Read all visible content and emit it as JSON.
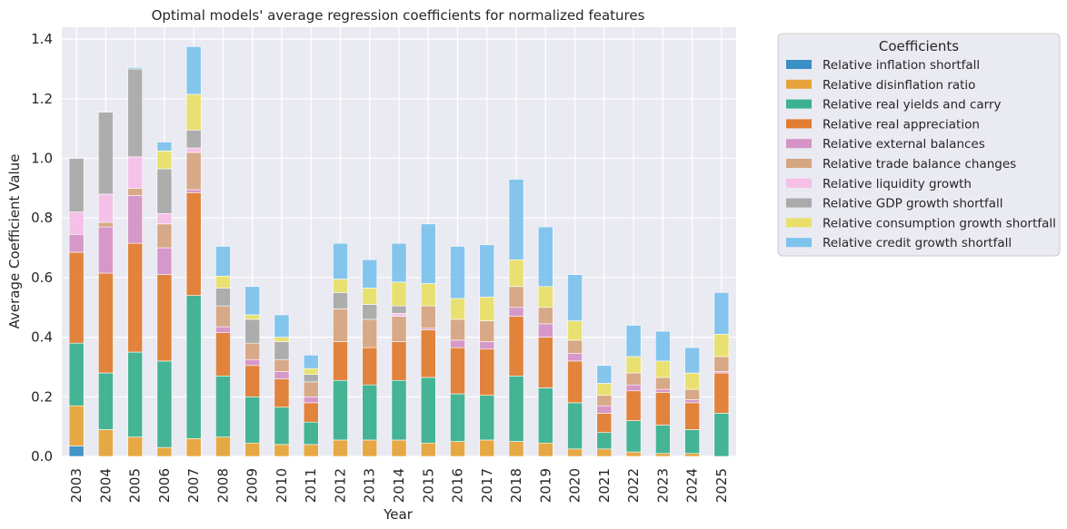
{
  "chart_data": {
    "type": "bar",
    "stacked": true,
    "title": "Optimal models' average regression coefficients for normalized features",
    "xlabel": "Year",
    "ylabel": "Average Coefficient Value",
    "ylim": [
      0,
      1.44
    ],
    "yticks": [
      "0.0",
      "0.2",
      "0.4",
      "0.6",
      "0.8",
      "1.0",
      "1.2",
      "1.4"
    ],
    "ytick_values": [
      0,
      0.2,
      0.4,
      0.6,
      0.8,
      1.0,
      1.2,
      1.4
    ],
    "grid": true,
    "legend_title": "Coefficients",
    "legend_placement": "outside-right",
    "categories": [
      "2003",
      "2004",
      "2005",
      "2006",
      "2007",
      "2008",
      "2009",
      "2010",
      "2011",
      "2012",
      "2013",
      "2014",
      "2015",
      "2016",
      "2017",
      "2018",
      "2019",
      "2020",
      "2021",
      "2022",
      "2023",
      "2024",
      "2025"
    ],
    "series": [
      {
        "name": "Relative inflation shortfall",
        "color": "#3a8fc6",
        "values": [
          0.035,
          0,
          0,
          0,
          0,
          0,
          0,
          0,
          0,
          0,
          0,
          0,
          0,
          0,
          0,
          0,
          0,
          0,
          0,
          0,
          0,
          0,
          0
        ]
      },
      {
        "name": "Relative disinflation ratio",
        "color": "#e6a43a",
        "values": [
          0.135,
          0.09,
          0.065,
          0.03,
          0.06,
          0.065,
          0.045,
          0.04,
          0.04,
          0.055,
          0.055,
          0.055,
          0.045,
          0.05,
          0.055,
          0.05,
          0.045,
          0.025,
          0.025,
          0.015,
          0.01,
          0.01,
          0.0
        ]
      },
      {
        "name": "Relative real yields and carry",
        "color": "#3bb18e",
        "values": [
          0.21,
          0.19,
          0.285,
          0.29,
          0.48,
          0.205,
          0.155,
          0.125,
          0.075,
          0.2,
          0.185,
          0.2,
          0.22,
          0.16,
          0.15,
          0.22,
          0.185,
          0.155,
          0.055,
          0.105,
          0.095,
          0.08,
          0.145
        ]
      },
      {
        "name": "Relative real appreciation",
        "color": "#e07d32",
        "values": [
          0.305,
          0.335,
          0.365,
          0.29,
          0.345,
          0.145,
          0.105,
          0.095,
          0.065,
          0.13,
          0.125,
          0.13,
          0.16,
          0.155,
          0.155,
          0.2,
          0.17,
          0.14,
          0.065,
          0.1,
          0.11,
          0.09,
          0.135
        ]
      },
      {
        "name": "Relative external balances",
        "color": "#d593c6",
        "values": [
          0.06,
          0.155,
          0.16,
          0.09,
          0.01,
          0.02,
          0.02,
          0.025,
          0.02,
          0,
          0,
          0,
          0.005,
          0.025,
          0.025,
          0.03,
          0.045,
          0.025,
          0.025,
          0.02,
          0.01,
          0.01,
          0.005
        ]
      },
      {
        "name": "Relative trade balance changes",
        "color": "#d6a582",
        "values": [
          0,
          0.015,
          0.025,
          0.08,
          0.125,
          0.07,
          0.055,
          0.04,
          0.05,
          0.11,
          0.095,
          0.085,
          0.075,
          0.07,
          0.07,
          0.07,
          0.055,
          0.045,
          0.035,
          0.04,
          0.04,
          0.035,
          0.05
        ]
      },
      {
        "name": "Relative liquidity growth",
        "color": "#f5bfe8",
        "values": [
          0.075,
          0.095,
          0.105,
          0.035,
          0.015,
          0,
          0,
          0,
          0,
          0,
          0,
          0.01,
          0,
          0,
          0,
          0,
          0,
          0,
          0,
          0,
          0,
          0,
          0
        ]
      },
      {
        "name": "Relative GDP growth shortfall",
        "color": "#aaaaaa",
        "values": [
          0.18,
          0.275,
          0.295,
          0.15,
          0.06,
          0.06,
          0.08,
          0.06,
          0.025,
          0.055,
          0.05,
          0.025,
          0,
          0,
          0,
          0,
          0,
          0,
          0,
          0,
          0,
          0,
          0
        ]
      },
      {
        "name": "Relative consumption growth shortfall",
        "color": "#e8e06a",
        "values": [
          0,
          0,
          0,
          0.06,
          0.12,
          0.04,
          0.015,
          0.015,
          0.02,
          0.045,
          0.055,
          0.08,
          0.075,
          0.07,
          0.08,
          0.09,
          0.07,
          0.065,
          0.04,
          0.055,
          0.055,
          0.055,
          0.075
        ]
      },
      {
        "name": "Relative credit growth shortfall",
        "color": "#7ec3ec",
        "values": [
          0,
          0,
          0.005,
          0.03,
          0.16,
          0.1,
          0.095,
          0.075,
          0.045,
          0.12,
          0.095,
          0.13,
          0.2,
          0.175,
          0.175,
          0.27,
          0.2,
          0.155,
          0.06,
          0.105,
          0.1,
          0.085,
          0.14
        ]
      }
    ]
  }
}
